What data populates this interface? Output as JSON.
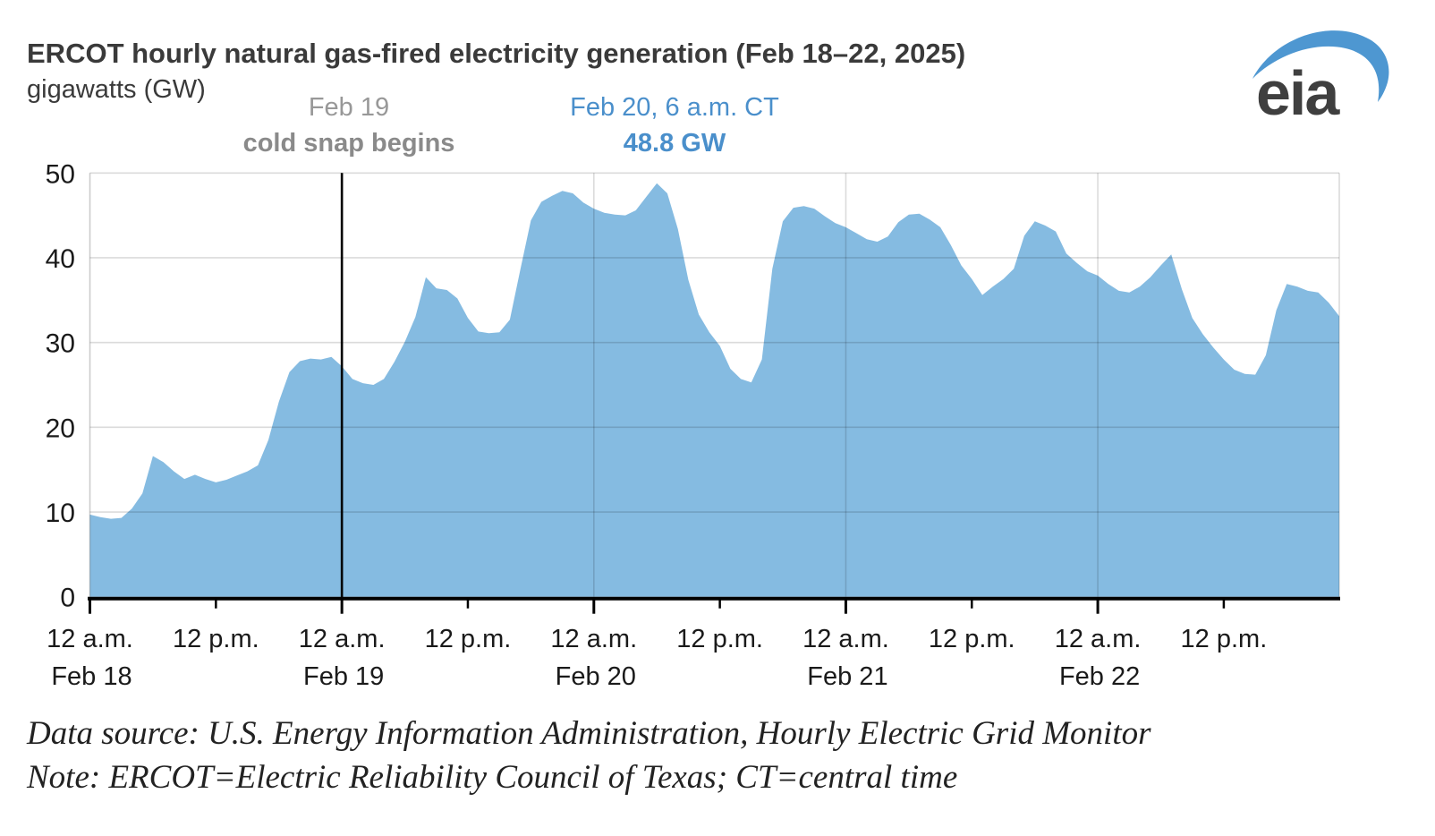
{
  "header": {
    "title": "ERCOT hourly natural gas-fired electricity generation (Feb 18–22, 2025)",
    "subtitle": "gigawatts (GW)",
    "logo_text": "eia"
  },
  "annotations": {
    "cold_snap": {
      "line1": "Feb 19",
      "line2": "cold snap begins"
    },
    "peak": {
      "line1": "Feb 20, 6 a.m. CT",
      "line2": "48.8 GW"
    }
  },
  "footer": {
    "line1": "Data source: U.S. Energy Information Administration, Hourly Electric Grid Monitor",
    "line2": "Note: ERCOT=Electric Reliability Council of Texas; CT=central time"
  },
  "chart_data": {
    "type": "area",
    "title": "ERCOT hourly natural gas-fired electricity generation (Feb 18–22, 2025)",
    "ylabel": "gigawatts (GW)",
    "ylim": [
      0,
      50
    ],
    "y_ticks": [
      0,
      10,
      20,
      30,
      40,
      50
    ],
    "grid": true,
    "legend_position": "none",
    "x_unit": "hours, Feb 18 12 a.m. through Feb 22 11 p.m. CT",
    "x_ticks": [
      {
        "index": 0,
        "time": "12 a.m.",
        "day": "Feb 18",
        "major": true
      },
      {
        "index": 12,
        "time": "12 p.m.",
        "major": false
      },
      {
        "index": 24,
        "time": "12 a.m.",
        "day": "Feb 19",
        "major": true
      },
      {
        "index": 36,
        "time": "12 p.m.",
        "major": false
      },
      {
        "index": 48,
        "time": "12 a.m.",
        "day": "Feb 20",
        "major": true
      },
      {
        "index": 60,
        "time": "12 p.m.",
        "major": false
      },
      {
        "index": 72,
        "time": "12 a.m.",
        "day": "Feb 21",
        "major": true
      },
      {
        "index": 84,
        "time": "12 p.m.",
        "major": false
      },
      {
        "index": 96,
        "time": "12 a.m.",
        "day": "Feb 22",
        "major": true
      },
      {
        "index": 108,
        "time": "12 p.m.",
        "major": false
      }
    ],
    "event_line": {
      "index": 24,
      "label": "Feb 19 cold snap begins"
    },
    "peak_point": {
      "index": 54,
      "value": 48.8,
      "label": "Feb 20, 6 a.m. CT 48.8 GW"
    },
    "fill_color": "#85BBE1",
    "series": [
      {
        "name": "ERCOT natural gas-fired generation (GW)",
        "values": [
          9.7,
          9.4,
          9.2,
          9.3,
          10.4,
          12.2,
          16.6,
          15.9,
          14.8,
          13.9,
          14.4,
          13.9,
          13.5,
          13.8,
          14.3,
          14.8,
          15.5,
          18.5,
          23.0,
          26.5,
          27.8,
          28.1,
          28.0,
          28.3,
          27.2,
          25.7,
          25.2,
          25.0,
          25.7,
          27.7,
          30.1,
          33.0,
          37.7,
          36.4,
          36.2,
          35.2,
          32.9,
          31.3,
          31.1,
          31.2,
          32.7,
          38.6,
          44.4,
          46.6,
          47.3,
          47.9,
          47.6,
          46.5,
          45.8,
          45.3,
          45.1,
          45.0,
          45.6,
          47.2,
          48.8,
          47.6,
          43.4,
          37.4,
          33.3,
          31.2,
          29.6,
          26.9,
          25.7,
          25.3,
          28.0,
          38.7,
          44.3,
          45.9,
          46.1,
          45.8,
          44.9,
          44.1,
          43.6,
          42.9,
          42.2,
          41.9,
          42.5,
          44.2,
          45.1,
          45.2,
          44.5,
          43.6,
          41.5,
          39.1,
          37.5,
          35.6,
          36.6,
          37.5,
          38.7,
          42.6,
          44.3,
          43.8,
          43.1,
          40.5,
          39.4,
          38.4,
          37.9,
          36.9,
          36.1,
          35.9,
          36.6,
          37.7,
          39.1,
          40.4,
          36.3,
          32.9,
          31.0,
          29.4,
          28.0,
          26.8,
          26.3,
          26.2,
          28.5,
          33.8,
          36.9,
          36.6,
          36.1,
          35.9,
          34.7,
          33.1
        ]
      }
    ]
  }
}
